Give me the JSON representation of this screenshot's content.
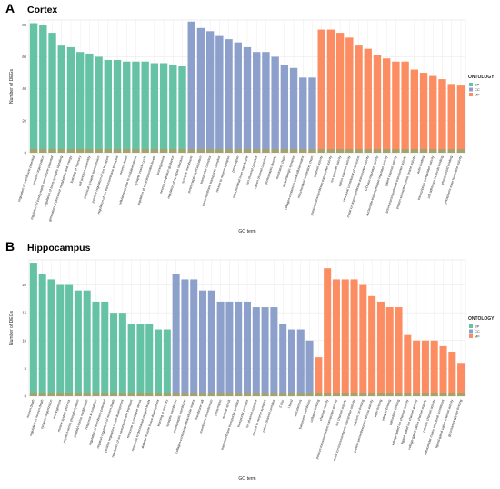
{
  "colors": {
    "bp": "#66c2a5",
    "cc": "#8da0cb",
    "mf": "#fc8d62",
    "grid": "#e6e6e6",
    "panel_bg": "#ffffff",
    "base_strip": "#a3a36b"
  },
  "legend": {
    "title": "ONTOLOGY",
    "items": [
      {
        "label": "BP",
        "color": "#66c2a5"
      },
      {
        "label": "CC",
        "color": "#8da0cb"
      },
      {
        "label": "MF",
        "color": "#fc8d62"
      }
    ]
  },
  "chart_data": [
    {
      "type": "bar",
      "panel_letter": "A",
      "title": "Cortex",
      "xlabel": "GO term",
      "ylabel": "Number of DEGs",
      "ylim": [
        0,
        83
      ],
      "yticks": [
        0,
        20,
        40,
        60,
        80
      ],
      "grid": true,
      "legend_position": "right",
      "series": [
        {
          "name": "BP",
          "color": "#66c2a5",
          "categories": [
            "regulation of membrane potential",
            "synapse organization",
            "regulation of postsynaptic membrane potential",
            "regulation of trans-synaptic signaling",
            "generation of precursor metabolites and energy",
            "learning or memory",
            "cell junction assembly",
            "chemical synaptic transmission",
            "positive regulation of ion transport",
            "regulation of ion transmembrane transport",
            "neuron death",
            "cellular response to oxidative stress",
            "synaptic vesicle cycle",
            "regulation of neurotransmitter levels",
            "axonogenesis",
            "neuron projection guidance",
            "regulation of synapse structure"
          ],
          "values": [
            81,
            80,
            75,
            67,
            66,
            63,
            62,
            60,
            58,
            58,
            57,
            57,
            57,
            56,
            56,
            55,
            54
          ]
        },
        {
          "name": "CC",
          "color": "#8da0cb",
          "categories": [
            "synaptic membrane",
            "postsynaptic specialization",
            "transporter complex",
            "transmembrane transporter complex",
            "neuron to neuron synapse",
            "presynapse",
            "mitochondrial inner membrane",
            "ion channel complex",
            "cation channel complex",
            "postsynaptic density",
            "respiratory chain",
            "glutamatergic synapse",
            "collagen-containing extracellular matrix",
            "mitochondrial respiratory chain"
          ],
          "values": [
            82,
            78,
            76,
            73,
            71,
            69,
            66,
            63,
            63,
            60,
            55,
            53,
            47,
            47
          ]
        },
        {
          "name": "MF",
          "color": "#fc8d62",
          "categories": [
            "channel activity",
            "passive transmembrane transporter activity",
            "ion channel activity",
            "cation channel activity",
            "structural constituent of ribosome",
            "metal ion transmembrane transporter activity",
            "GTPase regulator activity",
            "nucleoside-triphosphatase regulator activity",
            "gated channel activity",
            "active transmembrane transporter activity",
            "protein serine/threonine kinase activity",
            "actin binding",
            "transcription coregulator activity",
            "cell adhesion molecule binding",
            "phospholipid binding",
            "phosphoric ester hydrolase activity"
          ],
          "values": [
            77,
            77,
            75,
            72,
            67,
            65,
            61,
            59,
            57,
            57,
            52,
            50,
            48,
            46,
            43,
            42
          ]
        }
      ]
    },
    {
      "type": "bar",
      "panel_letter": "B",
      "title": "Hippocampus",
      "xlabel": "GO term",
      "ylabel": "Number of DEGs",
      "ylim": [
        0,
        24.5
      ],
      "yticks": [
        0,
        5,
        10,
        15,
        20
      ],
      "grid": true,
      "legend_position": "right",
      "series": [
        {
          "name": "BP",
          "color": "#66c2a5",
          "categories": [
            "neuron death",
            "regulation of neuron death",
            "synapse organization",
            "axonogenesis",
            "muscle system process",
            "peptidyl-serine phosphorylation",
            "peptidyl-serine modification",
            "response to metal ion",
            "regulation of membrane potential",
            "negative regulation of neuron death",
            "positive regulation of cell development",
            "regulation of ion transmembrane transport",
            "response to oxidative stress",
            "response to decreased oxygen levels",
            "skeletal muscle tissue development",
            "learning or memory"
          ],
          "values": [
            24,
            22,
            21,
            20,
            20,
            19,
            19,
            17,
            17,
            15,
            15,
            13,
            13,
            13,
            12,
            12
          ]
        },
        {
          "name": "CC",
          "color": "#8da0cb",
          "categories": [
            "synaptic membrane",
            "postsynaptic membrane",
            "collagen-containing extracellular matrix",
            "membrane raft",
            "membrane microdomain",
            "presynapse",
            "nuclear speck",
            "transmembrane transporter complex",
            "transporter complex",
            "ion channel complex",
            "neuron to neuron synapse",
            "cation channel complex",
            "Z disc",
            "I band",
            "sarcolemma",
            "basement membrane"
          ],
          "values": [
            22,
            21,
            21,
            19,
            19,
            17,
            17,
            17,
            17,
            16,
            16,
            16,
            13,
            12,
            12,
            10
          ]
        },
        {
          "name": "MF",
          "color": "#fc8d62",
          "categories": [
            "collagen binding",
            "channel activity",
            "passive transmembrane transporter activity",
            "ion channel activity",
            "metal ion transmembrane transporter activity",
            "calcium ion binding",
            "protein serine/threonine kinase activity",
            "actin binding",
            "integrin binding",
            "calmodulin binding",
            "voltage-gated ion channel activity",
            "ligand-gated ion channel activity",
            "voltage-gated cation channel activity",
            "calcium channel activity",
            "extracellular matrix structural constituent",
            "ligand-gated cation channel activity",
            "glycosaminoglycan binding"
          ],
          "values": [
            7,
            23,
            21,
            21,
            21,
            20,
            18,
            17,
            16,
            16,
            11,
            10,
            10,
            10,
            9,
            8,
            6
          ]
        }
      ]
    }
  ]
}
